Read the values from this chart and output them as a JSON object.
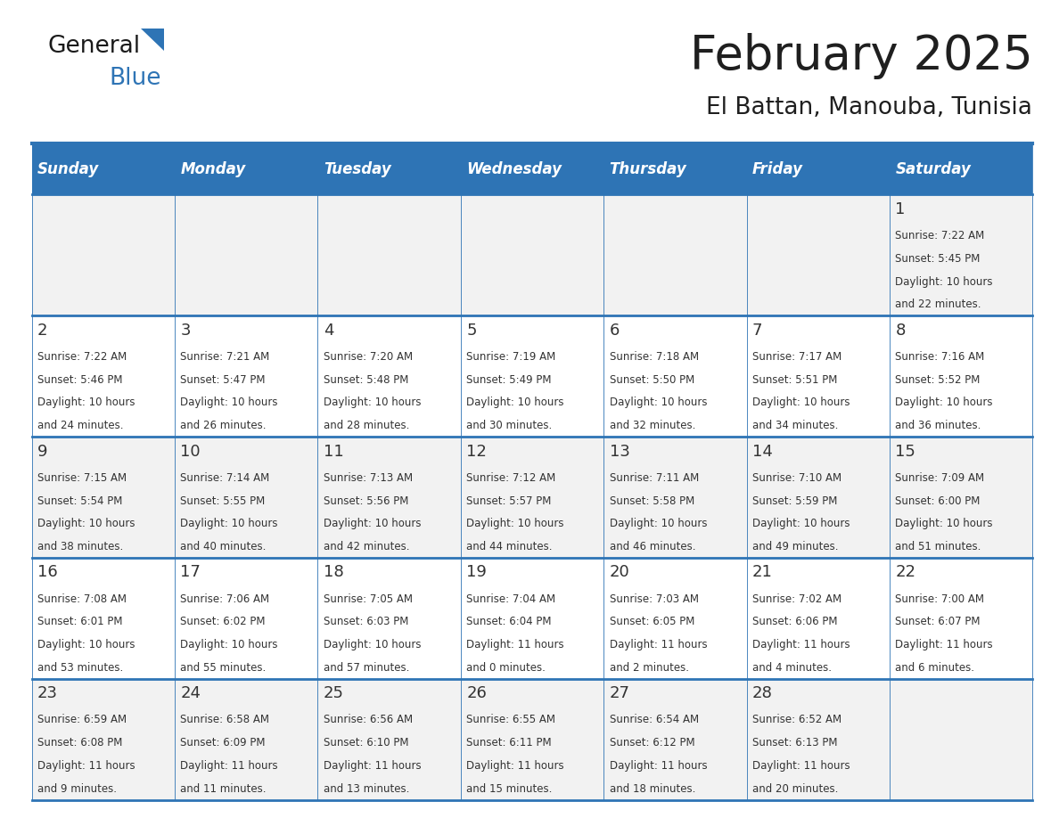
{
  "title": "February 2025",
  "subtitle": "El Battan, Manouba, Tunisia",
  "header_bg": "#2E74B5",
  "header_text_color": "#FFFFFF",
  "row_bg_1": "#F2F2F2",
  "row_bg_2": "#FFFFFF",
  "border_color": "#2E74B5",
  "day_names": [
    "Sunday",
    "Monday",
    "Tuesday",
    "Wednesday",
    "Thursday",
    "Friday",
    "Saturday"
  ],
  "title_color": "#1F1F1F",
  "subtitle_color": "#1F1F1F",
  "day_number_color": "#333333",
  "info_text_color": "#333333",
  "logo_general_color": "#1A1A1A",
  "logo_blue_color": "#2E74B5",
  "weeks": [
    [
      null,
      null,
      null,
      null,
      null,
      null,
      {
        "day": "1",
        "sunrise": "7:22 AM",
        "sunset": "5:45 PM",
        "dl1": "Daylight: 10 hours",
        "dl2": "and 22 minutes."
      }
    ],
    [
      {
        "day": "2",
        "sunrise": "7:22 AM",
        "sunset": "5:46 PM",
        "dl1": "Daylight: 10 hours",
        "dl2": "and 24 minutes."
      },
      {
        "day": "3",
        "sunrise": "7:21 AM",
        "sunset": "5:47 PM",
        "dl1": "Daylight: 10 hours",
        "dl2": "and 26 minutes."
      },
      {
        "day": "4",
        "sunrise": "7:20 AM",
        "sunset": "5:48 PM",
        "dl1": "Daylight: 10 hours",
        "dl2": "and 28 minutes."
      },
      {
        "day": "5",
        "sunrise": "7:19 AM",
        "sunset": "5:49 PM",
        "dl1": "Daylight: 10 hours",
        "dl2": "and 30 minutes."
      },
      {
        "day": "6",
        "sunrise": "7:18 AM",
        "sunset": "5:50 PM",
        "dl1": "Daylight: 10 hours",
        "dl2": "and 32 minutes."
      },
      {
        "day": "7",
        "sunrise": "7:17 AM",
        "sunset": "5:51 PM",
        "dl1": "Daylight: 10 hours",
        "dl2": "and 34 minutes."
      },
      {
        "day": "8",
        "sunrise": "7:16 AM",
        "sunset": "5:52 PM",
        "dl1": "Daylight: 10 hours",
        "dl2": "and 36 minutes."
      }
    ],
    [
      {
        "day": "9",
        "sunrise": "7:15 AM",
        "sunset": "5:54 PM",
        "dl1": "Daylight: 10 hours",
        "dl2": "and 38 minutes."
      },
      {
        "day": "10",
        "sunrise": "7:14 AM",
        "sunset": "5:55 PM",
        "dl1": "Daylight: 10 hours",
        "dl2": "and 40 minutes."
      },
      {
        "day": "11",
        "sunrise": "7:13 AM",
        "sunset": "5:56 PM",
        "dl1": "Daylight: 10 hours",
        "dl2": "and 42 minutes."
      },
      {
        "day": "12",
        "sunrise": "7:12 AM",
        "sunset": "5:57 PM",
        "dl1": "Daylight: 10 hours",
        "dl2": "and 44 minutes."
      },
      {
        "day": "13",
        "sunrise": "7:11 AM",
        "sunset": "5:58 PM",
        "dl1": "Daylight: 10 hours",
        "dl2": "and 46 minutes."
      },
      {
        "day": "14",
        "sunrise": "7:10 AM",
        "sunset": "5:59 PM",
        "dl1": "Daylight: 10 hours",
        "dl2": "and 49 minutes."
      },
      {
        "day": "15",
        "sunrise": "7:09 AM",
        "sunset": "6:00 PM",
        "dl1": "Daylight: 10 hours",
        "dl2": "and 51 minutes."
      }
    ],
    [
      {
        "day": "16",
        "sunrise": "7:08 AM",
        "sunset": "6:01 PM",
        "dl1": "Daylight: 10 hours",
        "dl2": "and 53 minutes."
      },
      {
        "day": "17",
        "sunrise": "7:06 AM",
        "sunset": "6:02 PM",
        "dl1": "Daylight: 10 hours",
        "dl2": "and 55 minutes."
      },
      {
        "day": "18",
        "sunrise": "7:05 AM",
        "sunset": "6:03 PM",
        "dl1": "Daylight: 10 hours",
        "dl2": "and 57 minutes."
      },
      {
        "day": "19",
        "sunrise": "7:04 AM",
        "sunset": "6:04 PM",
        "dl1": "Daylight: 11 hours",
        "dl2": "and 0 minutes."
      },
      {
        "day": "20",
        "sunrise": "7:03 AM",
        "sunset": "6:05 PM",
        "dl1": "Daylight: 11 hours",
        "dl2": "and 2 minutes."
      },
      {
        "day": "21",
        "sunrise": "7:02 AM",
        "sunset": "6:06 PM",
        "dl1": "Daylight: 11 hours",
        "dl2": "and 4 minutes."
      },
      {
        "day": "22",
        "sunrise": "7:00 AM",
        "sunset": "6:07 PM",
        "dl1": "Daylight: 11 hours",
        "dl2": "and 6 minutes."
      }
    ],
    [
      {
        "day": "23",
        "sunrise": "6:59 AM",
        "sunset": "6:08 PM",
        "dl1": "Daylight: 11 hours",
        "dl2": "and 9 minutes."
      },
      {
        "day": "24",
        "sunrise": "6:58 AM",
        "sunset": "6:09 PM",
        "dl1": "Daylight: 11 hours",
        "dl2": "and 11 minutes."
      },
      {
        "day": "25",
        "sunrise": "6:56 AM",
        "sunset": "6:10 PM",
        "dl1": "Daylight: 11 hours",
        "dl2": "and 13 minutes."
      },
      {
        "day": "26",
        "sunrise": "6:55 AM",
        "sunset": "6:11 PM",
        "dl1": "Daylight: 11 hours",
        "dl2": "and 15 minutes."
      },
      {
        "day": "27",
        "sunrise": "6:54 AM",
        "sunset": "6:12 PM",
        "dl1": "Daylight: 11 hours",
        "dl2": "and 18 minutes."
      },
      {
        "day": "28",
        "sunrise": "6:52 AM",
        "sunset": "6:13 PM",
        "dl1": "Daylight: 11 hours",
        "dl2": "and 20 minutes."
      },
      null
    ]
  ]
}
